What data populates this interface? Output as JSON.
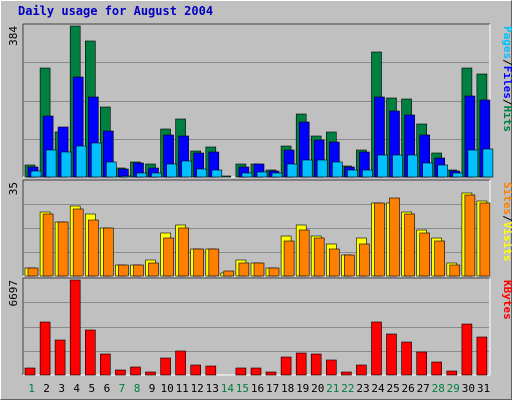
{
  "chart_data": {
    "type": "bar",
    "title": "Daily usage for August 2004",
    "categories": [
      "1",
      "2",
      "3",
      "4",
      "5",
      "6",
      "7",
      "8",
      "9",
      "10",
      "11",
      "12",
      "13",
      "14",
      "15",
      "16",
      "17",
      "18",
      "19",
      "20",
      "21",
      "22",
      "23",
      "24",
      "25",
      "26",
      "27",
      "28",
      "29",
      "30",
      "31"
    ],
    "weekend_days": [
      "1",
      "7",
      "8",
      "14",
      "15",
      "21",
      "22",
      "28",
      "29"
    ],
    "colors": {
      "background": "#c0c0c0",
      "panel_border": "#606060",
      "gridline": "#8a8a8a",
      "hits": "#008040",
      "files": "#0000ff",
      "pages": "#00c0ff",
      "visits": "#ffff00",
      "sites": "#ff8000",
      "kbytes": "#ff0000",
      "weekday_label": "#000000",
      "weekend_label": "#008040",
      "title": "#0000c0"
    },
    "panels": [
      {
        "name": "top",
        "ymax_label": "384",
        "ymax": 384,
        "series_labels": [
          {
            "text": "Pages",
            "color": "#00c0ff"
          },
          {
            "text": "/",
            "color": "#000000"
          },
          {
            "text": "Files",
            "color": "#0000ff"
          },
          {
            "text": "/",
            "color": "#000000"
          },
          {
            "text": "Hits",
            "color": "#008040"
          }
        ],
        "series": [
          {
            "name": "Hits",
            "values": [
              30,
              276,
              115,
              384,
              347,
              178,
              24,
              37,
              33,
              122,
              147,
              66,
              76,
              2,
              33,
              32,
              17,
              78,
              161,
              105,
              114,
              28,
              68,
              317,
              201,
              198,
              135,
              61,
              19,
              276,
              261
            ]
          },
          {
            "name": "Files",
            "values": [
              25,
              156,
              127,
              254,
              204,
              118,
              21,
              35,
              24,
              107,
              104,
              62,
              64,
              1,
              25,
              32,
              16,
              69,
              140,
              93,
              90,
              26,
              63,
              204,
              167,
              158,
              108,
              48,
              16,
              206,
              197
            ]
          },
          {
            "name": "Pages",
            "values": [
              14,
              69,
              63,
              79,
              86,
              37,
              3,
              11,
              11,
              33,
              40,
              20,
              19,
              0,
              11,
              13,
              10,
              32,
              44,
              42,
              38,
              18,
              19,
              55,
              57,
              56,
              35,
              30,
              10,
              69,
              71
            ]
          }
        ]
      },
      {
        "name": "middle",
        "ymax_label": "35",
        "ymax": 35,
        "series_labels": [
          {
            "text": "Sites",
            "color": "#ff8000"
          },
          {
            "text": "/",
            "color": "#000000"
          },
          {
            "text": "Visits",
            "color": "#ffff00"
          }
        ],
        "series": [
          {
            "name": "Visits",
            "values": [
              3,
              24,
              20,
              26,
              23,
              18,
              4,
              4,
              6,
              16,
              19,
              10,
              10,
              1,
              6,
              5,
              3,
              15,
              19,
              15,
              12,
              8,
              14,
              27,
              27,
              24,
              17,
              14,
              5,
              31,
              28
            ]
          },
          {
            "name": "Sites",
            "values": [
              3,
              23,
              20,
              25,
              21,
              18,
              4,
              4,
              5,
              14,
              18,
              10,
              10,
              2,
              5,
              5,
              3,
              13,
              17,
              14,
              10,
              8,
              12,
              27,
              29,
              23,
              16,
              13,
              4,
              30,
              27
            ]
          }
        ]
      },
      {
        "name": "bottom",
        "ymax_label": "6697",
        "ymax": 6697,
        "series_labels": [
          {
            "text": "KBytes",
            "color": "#ff0000"
          }
        ],
        "series": [
          {
            "name": "KBytes",
            "values": [
              511,
              3755,
              2495,
              6697,
              3146,
              1478,
              370,
              563,
              232,
              1222,
              1661,
              703,
              650,
              31,
              519,
              471,
              197,
              1251,
              1523,
              1461,
              1033,
              237,
              672,
              3754,
              2884,
              2304,
              1587,
              924,
              268,
              3614,
              2689
            ]
          }
        ]
      }
    ]
  }
}
